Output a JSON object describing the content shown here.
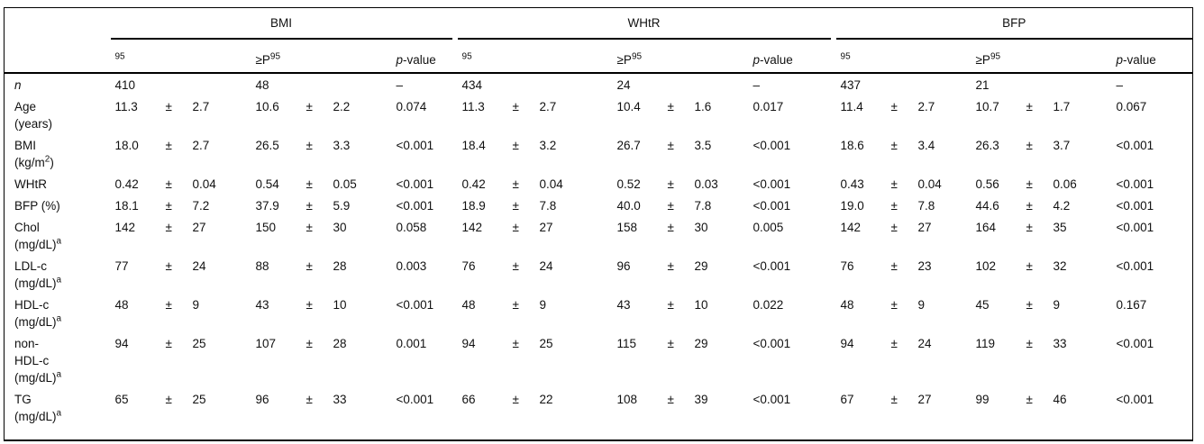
{
  "header": {
    "groups": [
      "BMI",
      "WHtR",
      "BFP"
    ],
    "sub": {
      "lt_sup": "95",
      "ge_base": "≥P",
      "ge_sup": "95",
      "p_italic": "p",
      "p_rest": "-value"
    }
  },
  "rows": [
    {
      "label": [
        [
          {
            "t": "n",
            "i": true
          }
        ]
      ],
      "groups": [
        {
          "lt": [
            "410",
            "",
            ""
          ],
          "ge": [
            "48",
            "",
            ""
          ],
          "p": "–"
        },
        {
          "lt": [
            "434",
            "",
            ""
          ],
          "ge": [
            "24",
            "",
            ""
          ],
          "p": "–"
        },
        {
          "lt": [
            "437",
            "",
            ""
          ],
          "ge": [
            "21",
            "",
            ""
          ],
          "p": "–"
        }
      ]
    },
    {
      "label": [
        [
          {
            "t": "Age"
          }
        ],
        [
          {
            "t": "(years)"
          }
        ]
      ],
      "groups": [
        {
          "lt": [
            "11.3",
            "±",
            "2.7"
          ],
          "ge": [
            "10.6",
            "±",
            "2.2"
          ],
          "p": "0.074"
        },
        {
          "lt": [
            "11.3",
            "±",
            "2.7"
          ],
          "ge": [
            "10.4",
            "±",
            "1.6"
          ],
          "p": "0.017"
        },
        {
          "lt": [
            "11.4",
            "±",
            "2.7"
          ],
          "ge": [
            "10.7",
            "±",
            "1.7"
          ],
          "p": "0.067"
        }
      ]
    },
    {
      "label": [
        [
          {
            "t": "BMI"
          }
        ],
        [
          {
            "t": "(kg/m"
          },
          {
            "t": "2",
            "sup": true
          },
          {
            "t": ")"
          }
        ]
      ],
      "groups": [
        {
          "lt": [
            "18.0",
            "±",
            "2.7"
          ],
          "ge": [
            "26.5",
            "±",
            "3.3"
          ],
          "p": "<0.001"
        },
        {
          "lt": [
            "18.4",
            "±",
            "3.2"
          ],
          "ge": [
            "26.7",
            "±",
            "3.5"
          ],
          "p": "<0.001"
        },
        {
          "lt": [
            "18.6",
            "±",
            "3.4"
          ],
          "ge": [
            "26.3",
            "±",
            "3.7"
          ],
          "p": "<0.001"
        }
      ]
    },
    {
      "label": [
        [
          {
            "t": "WHtR"
          }
        ]
      ],
      "groups": [
        {
          "lt": [
            "0.42",
            "±",
            "0.04"
          ],
          "ge": [
            "0.54",
            "±",
            "0.05"
          ],
          "p": "<0.001"
        },
        {
          "lt": [
            "0.42",
            "±",
            "0.04"
          ],
          "ge": [
            "0.52",
            "±",
            "0.03"
          ],
          "p": "<0.001"
        },
        {
          "lt": [
            "0.43",
            "±",
            "0.04"
          ],
          "ge": [
            "0.56",
            "±",
            "0.06"
          ],
          "p": "<0.001"
        }
      ]
    },
    {
      "label": [
        [
          {
            "t": "BFP (%)"
          }
        ]
      ],
      "groups": [
        {
          "lt": [
            "18.1",
            "±",
            "7.2"
          ],
          "ge": [
            "37.9",
            "±",
            "5.9"
          ],
          "p": "<0.001"
        },
        {
          "lt": [
            "18.9",
            "±",
            "7.8"
          ],
          "ge": [
            "40.0",
            "±",
            "7.8"
          ],
          "p": "<0.001"
        },
        {
          "lt": [
            "19.0",
            "±",
            "7.8"
          ],
          "ge": [
            "44.6",
            "±",
            "4.2"
          ],
          "p": "<0.001"
        }
      ]
    },
    {
      "label": [
        [
          {
            "t": "Chol"
          }
        ],
        [
          {
            "t": "(mg/dL)"
          },
          {
            "t": "a",
            "sup": true
          }
        ]
      ],
      "groups": [
        {
          "lt": [
            "142",
            "±",
            "27"
          ],
          "ge": [
            "150",
            "±",
            "30"
          ],
          "p": "0.058"
        },
        {
          "lt": [
            "142",
            "±",
            "27"
          ],
          "ge": [
            "158",
            "±",
            "30"
          ],
          "p": "0.005"
        },
        {
          "lt": [
            "142",
            "±",
            "27"
          ],
          "ge": [
            "164",
            "±",
            "35"
          ],
          "p": "<0.001"
        }
      ]
    },
    {
      "label": [
        [
          {
            "t": "LDL-c"
          }
        ],
        [
          {
            "t": "(mg/dL)"
          },
          {
            "t": "a",
            "sup": true
          }
        ]
      ],
      "groups": [
        {
          "lt": [
            "77",
            "±",
            "24"
          ],
          "ge": [
            "88",
            "±",
            "28"
          ],
          "p": "0.003"
        },
        {
          "lt": [
            "76",
            "±",
            "24"
          ],
          "ge": [
            "96",
            "±",
            "29"
          ],
          "p": "<0.001"
        },
        {
          "lt": [
            "76",
            "±",
            "23"
          ],
          "ge": [
            "102",
            "±",
            "32"
          ],
          "p": "<0.001"
        }
      ]
    },
    {
      "label": [
        [
          {
            "t": "HDL-c"
          }
        ],
        [
          {
            "t": "(mg/dL)"
          },
          {
            "t": "a",
            "sup": true
          }
        ]
      ],
      "groups": [
        {
          "lt": [
            "48",
            "±",
            "9"
          ],
          "ge": [
            "43",
            "±",
            "10"
          ],
          "p": "<0.001"
        },
        {
          "lt": [
            "48",
            "±",
            "9"
          ],
          "ge": [
            "43",
            "±",
            "10"
          ],
          "p": "0.022"
        },
        {
          "lt": [
            "48",
            "±",
            "9"
          ],
          "ge": [
            "45",
            "±",
            "9"
          ],
          "p": "0.167"
        }
      ]
    },
    {
      "label": [
        [
          {
            "t": "non-"
          }
        ],
        [
          {
            "t": "HDL-c"
          }
        ],
        [
          {
            "t": "(mg/dL)"
          },
          {
            "t": "a",
            "sup": true
          }
        ]
      ],
      "groups": [
        {
          "lt": [
            "94",
            "±",
            "25"
          ],
          "ge": [
            "107",
            "±",
            "28"
          ],
          "p": "0.001"
        },
        {
          "lt": [
            "94",
            "±",
            "25"
          ],
          "ge": [
            "115",
            "±",
            "29"
          ],
          "p": "<0.001"
        },
        {
          "lt": [
            "94",
            "±",
            "24"
          ],
          "ge": [
            "119",
            "±",
            "33"
          ],
          "p": "<0.001"
        }
      ]
    },
    {
      "label": [
        [
          {
            "t": "TG"
          }
        ],
        [
          {
            "t": "(mg/dL)"
          },
          {
            "t": "a",
            "sup": true
          }
        ]
      ],
      "groups": [
        {
          "lt": [
            "65",
            "±",
            "25"
          ],
          "ge": [
            "96",
            "±",
            "33"
          ],
          "p": "<0.001"
        },
        {
          "lt": [
            "66",
            "±",
            "22"
          ],
          "ge": [
            "108",
            "±",
            "39"
          ],
          "p": "<0.001"
        },
        {
          "lt": [
            "67",
            "±",
            "27"
          ],
          "ge": [
            "99",
            "±",
            "46"
          ],
          "p": "<0.001"
        }
      ]
    }
  ]
}
